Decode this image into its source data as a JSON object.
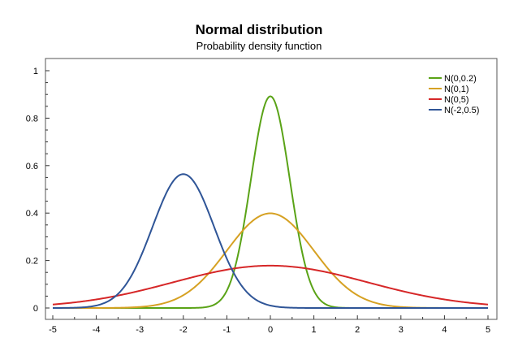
{
  "chart_data": {
    "type": "line",
    "title": "Normal distribution",
    "subtitle": "Probability density function",
    "xlabel": "",
    "ylabel": "",
    "xlim": [
      -5,
      5
    ],
    "ylim": [
      0,
      1
    ],
    "x_ticks": [
      -5,
      -4,
      -3,
      -2,
      -1,
      0,
      1,
      2,
      3,
      4,
      5
    ],
    "y_ticks": [
      0,
      0.2,
      0.4,
      0.6,
      0.8,
      1
    ],
    "y_tick_labels": [
      "0",
      "0.2",
      "0.4",
      "0.6",
      "0.8",
      "1"
    ],
    "legend_position": "top-right",
    "grid": false,
    "series": [
      {
        "name": "N(0,0.2)",
        "mu": 0,
        "variance": 0.2,
        "color": "#5aa317"
      },
      {
        "name": "N(0,1)",
        "mu": 0,
        "variance": 1,
        "color": "#d6a123"
      },
      {
        "name": "N(0,5)",
        "mu": 0,
        "variance": 5,
        "color": "#d62728"
      },
      {
        "name": "N(-2,0.5)",
        "mu": -2,
        "variance": 0.5,
        "color": "#2f5597"
      }
    ]
  }
}
